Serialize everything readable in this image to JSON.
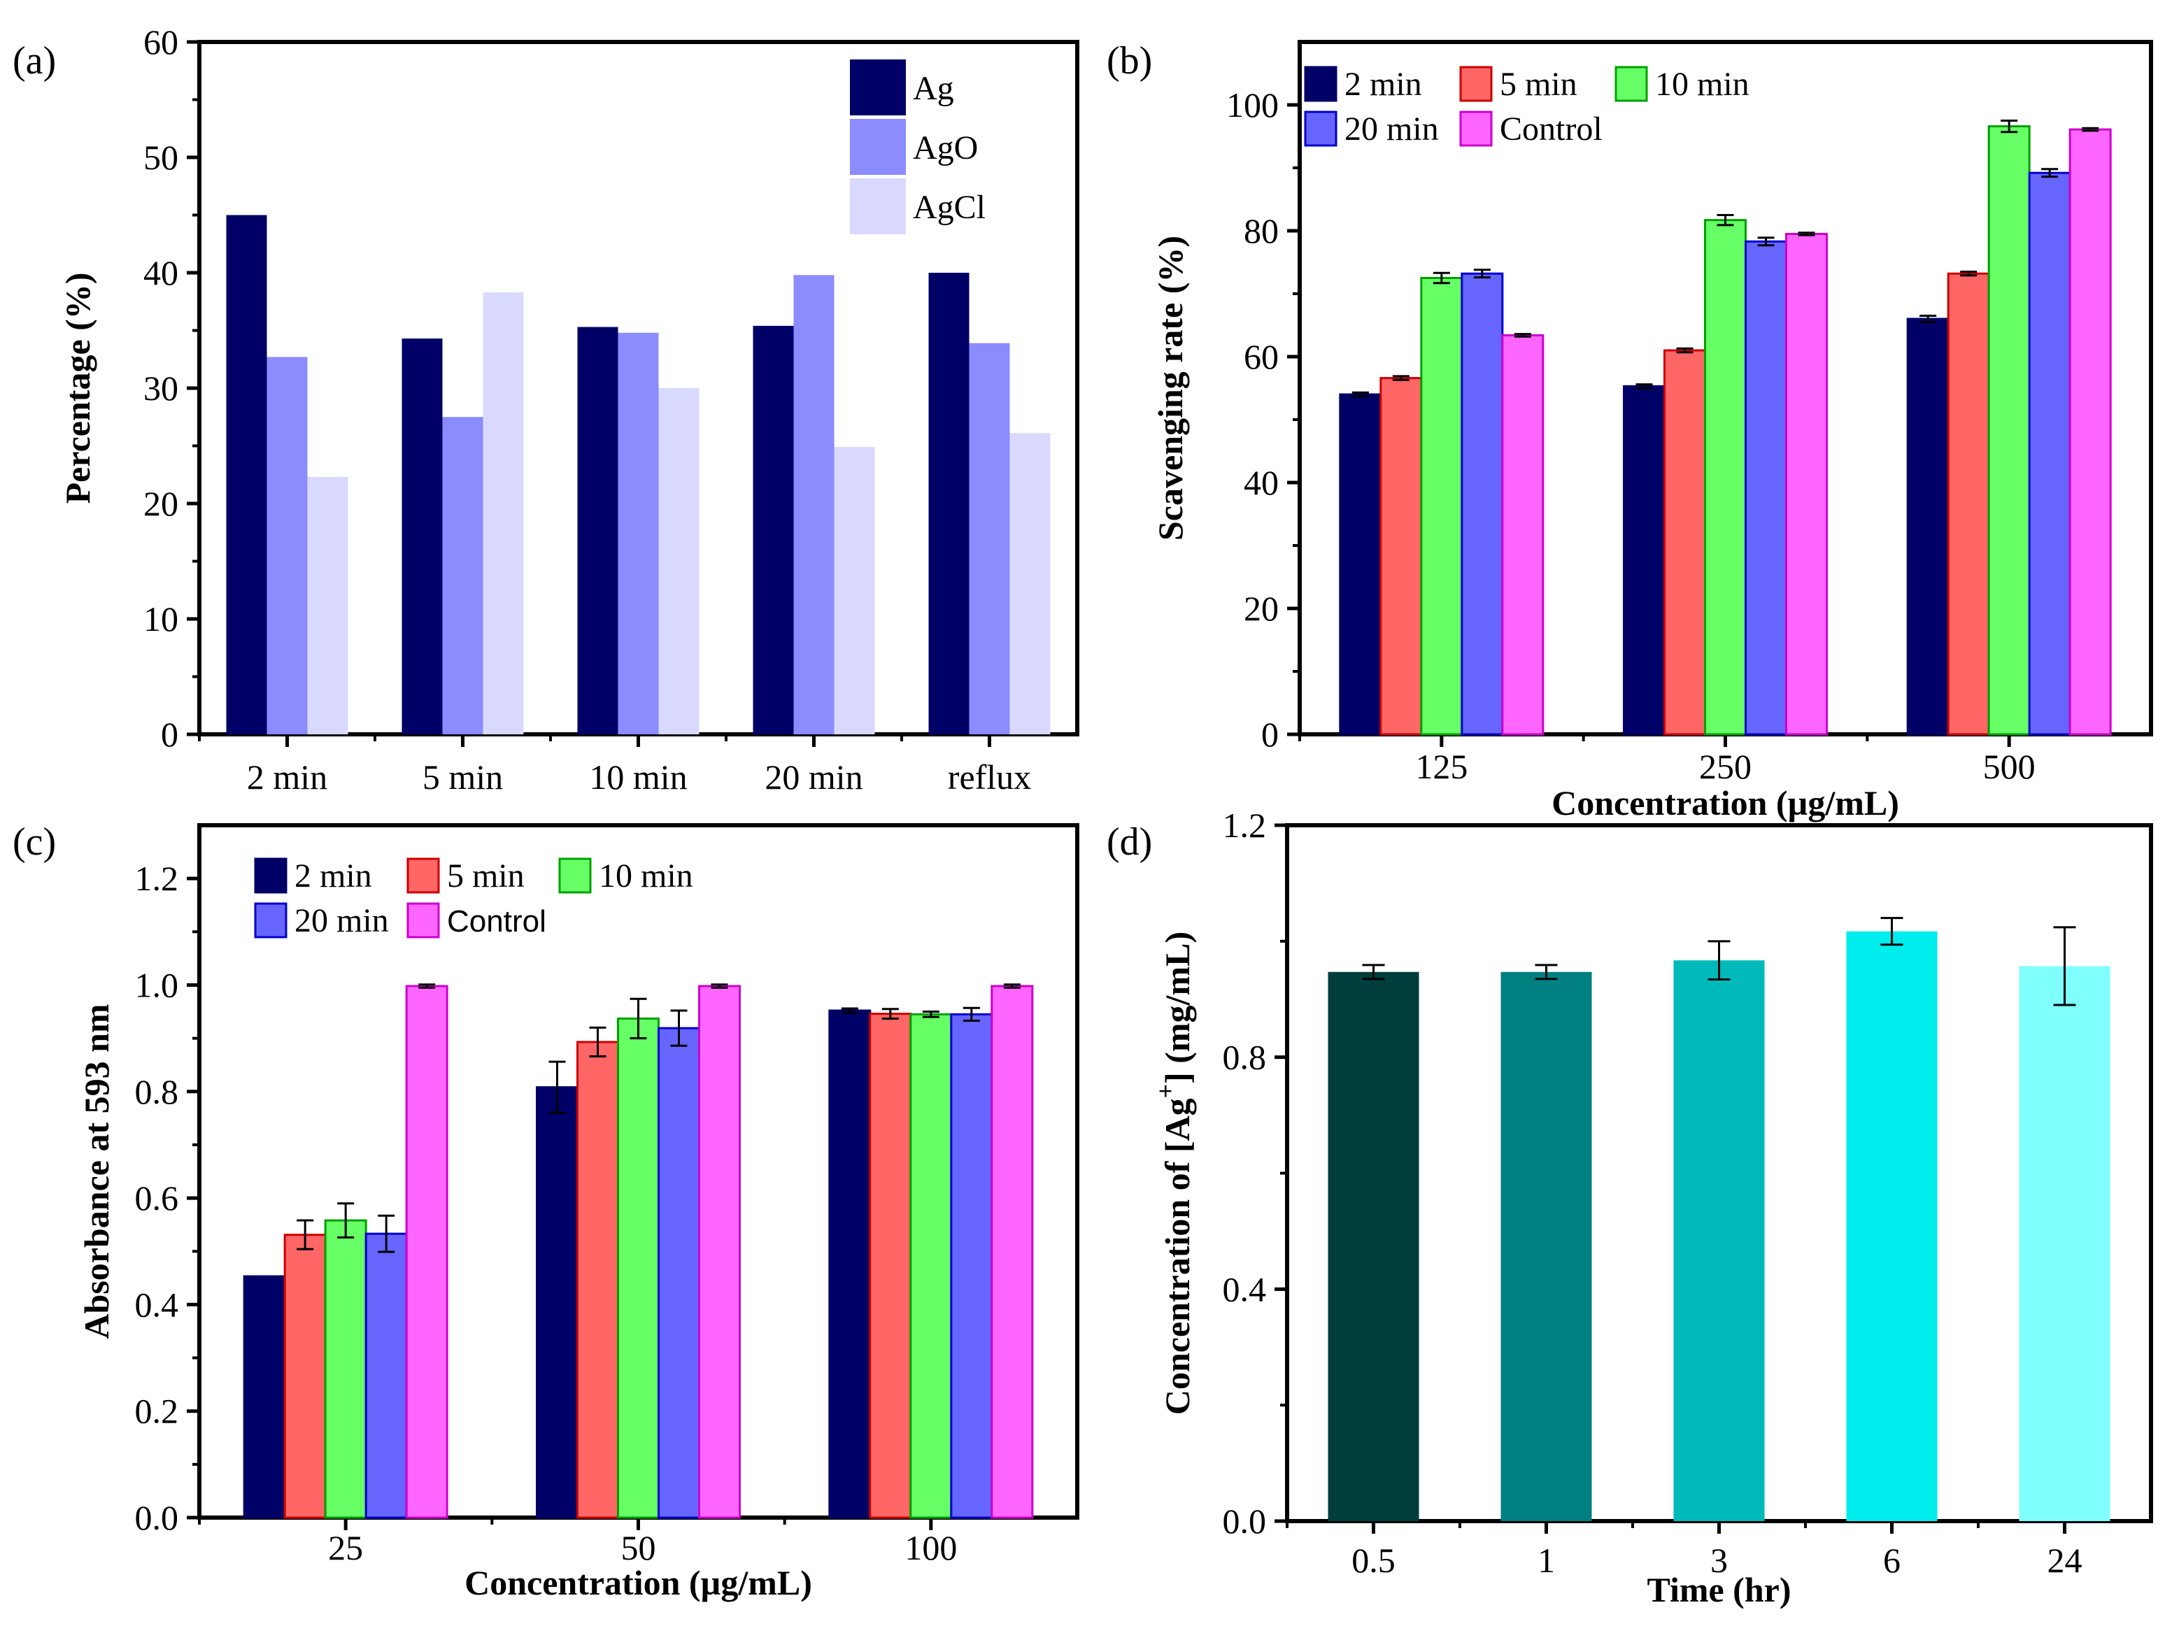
{
  "chart_data": [
    {
      "panel": "(a)",
      "type": "bar",
      "title": "",
      "xlabel": "",
      "ylabel": "Percentage (%)",
      "ylim": [
        0,
        60
      ],
      "yticks": [
        "0",
        "10",
        "20",
        "30",
        "40",
        "50",
        "60"
      ],
      "categories": [
        "2 min",
        "5 min",
        "10 min",
        "20 min",
        "reflux"
      ],
      "legend_position": "top-right",
      "series": [
        {
          "name": "Ag",
          "color": "#000066",
          "values": [
            45.0,
            34.3,
            35.3,
            35.4,
            40.0
          ]
        },
        {
          "name": "AgO",
          "color": "#8C8CFF",
          "values": [
            32.7,
            27.5,
            34.8,
            39.8,
            33.9
          ]
        },
        {
          "name": "AgCl",
          "color": "#D9D9FF",
          "values": [
            22.3,
            38.3,
            30.0,
            24.9,
            26.1
          ]
        }
      ]
    },
    {
      "panel": "(b)",
      "type": "bar",
      "title": "",
      "xlabel": "Concentration (µg/mL)",
      "ylabel": "Scavenging rate (%)",
      "ylim": [
        0,
        110
      ],
      "yticks": [
        "0",
        "20",
        "40",
        "60",
        "80",
        "100"
      ],
      "categories": [
        "125",
        "250",
        "500"
      ],
      "legend_position": "top-left",
      "series": [
        {
          "name": "2 min",
          "color": "#000066",
          "edge": "#000066",
          "values": [
            54.0,
            55.3,
            66.0
          ],
          "errors": [
            0.3,
            0.3,
            0.5
          ]
        },
        {
          "name": "5 min",
          "color": "#FF6666",
          "edge": "#CC0000",
          "values": [
            56.6,
            61.0,
            73.2
          ],
          "errors": [
            0.3,
            0.3,
            0.3
          ]
        },
        {
          "name": "10 min",
          "color": "#66FF66",
          "edge": "#00A000",
          "values": [
            72.5,
            81.7,
            96.6
          ],
          "errors": [
            0.8,
            0.8,
            0.9
          ]
        },
        {
          "name": "20 min",
          "color": "#6666FF",
          "edge": "#0000CC",
          "values": [
            73.2,
            78.3,
            89.2
          ],
          "errors": [
            0.6,
            0.6,
            0.6
          ]
        },
        {
          "name": "Control",
          "color": "#FF66FF",
          "edge": "#CC00CC",
          "values": [
            63.4,
            79.5,
            96.1
          ],
          "errors": [
            0.2,
            0.2,
            0.2
          ]
        }
      ]
    },
    {
      "panel": "(c)",
      "type": "bar",
      "title": "",
      "xlabel": "Concentration (µg/mL)",
      "ylabel": "Absorbance at 593 nm",
      "ylim": [
        0,
        1.3
      ],
      "yticks": [
        "0.0",
        "0.2",
        "0.4",
        "0.6",
        "0.8",
        "1.0",
        "1.2"
      ],
      "categories": [
        "25",
        "50",
        "100"
      ],
      "legend_position": "top-left",
      "series": [
        {
          "name": "2 min",
          "color": "#000066",
          "edge": "#000066",
          "values": [
            0.453,
            0.808,
            0.952
          ],
          "errors": [
            0.0,
            0.048,
            0.004
          ]
        },
        {
          "name": "5 min",
          "color": "#FF6666",
          "edge": "#CC0000",
          "values": [
            0.531,
            0.893,
            0.946
          ],
          "errors": [
            0.027,
            0.027,
            0.009
          ]
        },
        {
          "name": "10 min",
          "color": "#66FF66",
          "edge": "#00A000",
          "values": [
            0.558,
            0.937,
            0.945
          ],
          "errors": [
            0.032,
            0.037,
            0.005
          ]
        },
        {
          "name": "20 min",
          "color": "#6666FF",
          "edge": "#0000CC",
          "values": [
            0.533,
            0.919,
            0.945
          ],
          "errors": [
            0.034,
            0.033,
            0.012
          ]
        },
        {
          "name": "Control",
          "color": "#FF66FF",
          "edge": "#CC00CC",
          "values": [
            0.998,
            0.998,
            0.998
          ],
          "errors": [
            0.003,
            0.003,
            0.003
          ]
        }
      ]
    },
    {
      "panel": "(d)",
      "type": "bar",
      "title": "",
      "xlabel": "Time (hr)",
      "ylabel_prefix": "Concentration of [Ag",
      "ylabel_sup": "+",
      "ylabel_suffix": "] (mg/mL)",
      "ylim": [
        0,
        1.2
      ],
      "yticks": [
        "0.0",
        "0.4",
        "0.8",
        "1.2"
      ],
      "categories": [
        "0.5",
        "1",
        "3",
        "6",
        "24"
      ],
      "values": [
        0.947,
        0.947,
        0.967,
        1.017,
        0.957
      ],
      "errors": [
        0.012,
        0.012,
        0.033,
        0.023,
        0.067
      ],
      "colors": [
        "#003D3D",
        "#008080",
        "#00BABA",
        "#00EDED",
        "#80FFFF"
      ]
    }
  ]
}
